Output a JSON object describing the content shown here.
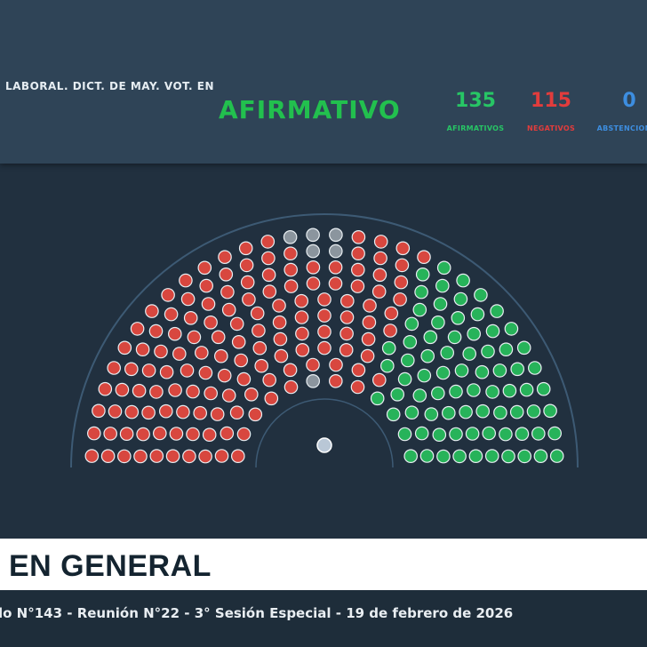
{
  "header": {
    "title": "LABORAL. DICT. DE MAY. VOT. EN",
    "result": "AFIRMATIVO",
    "counts": [
      {
        "value": "135",
        "label": "AFIRMATIVOS",
        "color": "#27c565"
      },
      {
        "value": "115",
        "label": "NEGATIVOS",
        "color": "#e23c3c"
      },
      {
        "value": "0",
        "label": "ABSTENCIONES",
        "color": "#3d8ee0"
      }
    ]
  },
  "chamber": {
    "colors": {
      "afirmativo": "#27b35a",
      "negativo": "#d8473f",
      "ausente": "#8b959e",
      "presidencia": "#b9c7d6"
    }
  },
  "banner": {
    "text": "EN GENERAL"
  },
  "footer": {
    "text": "lo N°143 - Reunión N°22 - 3° Sesión Especial - 19 de febrero de 2026"
  }
}
